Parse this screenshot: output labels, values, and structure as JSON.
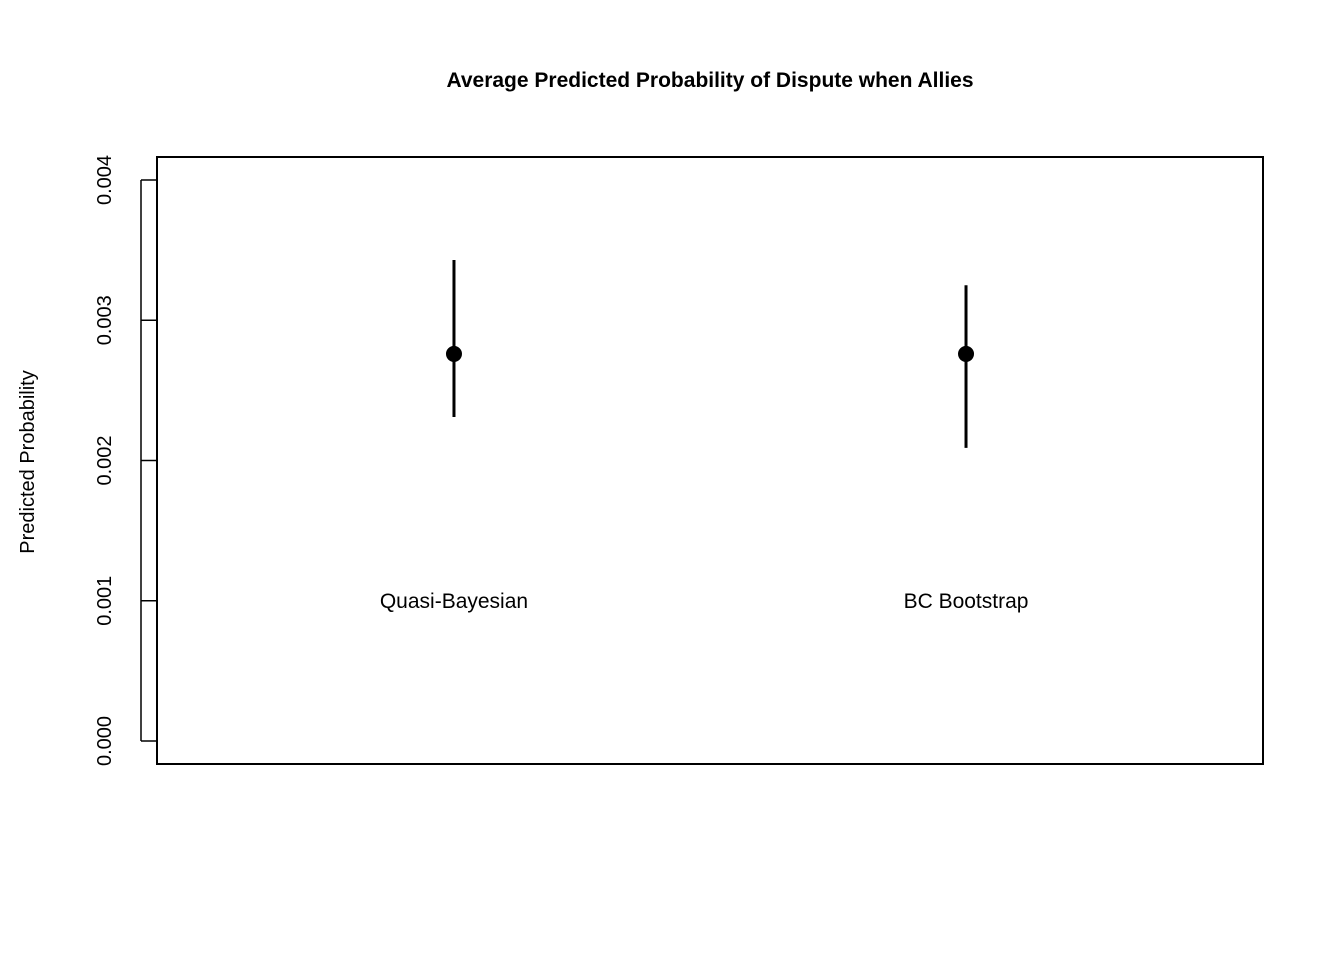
{
  "chart_data": {
    "type": "scatter",
    "title": "Average Predicted Probability of Dispute when Allies",
    "xlabel": "",
    "ylabel": "Predicted Probability",
    "ylim": [
      0,
      0.004
    ],
    "yticks": [
      {
        "value": 0.0,
        "label": "0.000"
      },
      {
        "value": 0.001,
        "label": "0.001"
      },
      {
        "value": 0.002,
        "label": "0.002"
      },
      {
        "value": 0.003,
        "label": "0.003"
      },
      {
        "value": 0.004,
        "label": "0.004"
      }
    ],
    "xlim": [
      0.42,
      2.58
    ],
    "grid": false,
    "legend": "none",
    "categories": [
      "Quasi-Bayesian",
      "BC Bootstrap"
    ],
    "category_label_y": 0.001,
    "points": [
      {
        "label": "Quasi-Bayesian",
        "x": 1,
        "y": 0.00276,
        "lower": 0.00231,
        "upper": 0.00343
      },
      {
        "label": "BC Bootstrap",
        "x": 2,
        "y": 0.00276,
        "lower": 0.00209,
        "upper": 0.00325
      }
    ]
  }
}
